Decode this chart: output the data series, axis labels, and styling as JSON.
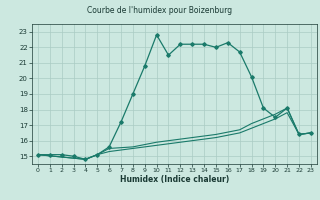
{
  "title": "Courbe de l'humidex pour Boizenburg",
  "xlabel": "Humidex (Indice chaleur)",
  "bg_color": "#cce8e0",
  "grid_color": "#aaccC4",
  "line_color": "#1a7a6a",
  "xlim": [
    -0.5,
    23.5
  ],
  "ylim": [
    14.5,
    23.5
  ],
  "yticks": [
    15,
    16,
    17,
    18,
    19,
    20,
    21,
    22,
    23
  ],
  "xticks": [
    0,
    1,
    2,
    3,
    4,
    5,
    6,
    7,
    8,
    9,
    10,
    11,
    12,
    13,
    14,
    15,
    16,
    17,
    18,
    19,
    20,
    21,
    22,
    23
  ],
  "line1_x": [
    0,
    1,
    2,
    3,
    4,
    5,
    6,
    7,
    8,
    9,
    10,
    11,
    12,
    13,
    14,
    15,
    16,
    17,
    18,
    19,
    20,
    21,
    22,
    23
  ],
  "line1_y": [
    15.1,
    15.1,
    15.1,
    15.0,
    14.8,
    15.1,
    15.6,
    17.2,
    19.0,
    20.8,
    22.8,
    21.5,
    22.2,
    22.2,
    22.2,
    22.0,
    22.3,
    21.7,
    20.1,
    18.1,
    17.5,
    18.1,
    16.4,
    16.5
  ],
  "line2_x": [
    0,
    4,
    5,
    6,
    8,
    10,
    13,
    15,
    17,
    18,
    20,
    21,
    22,
    23
  ],
  "line2_y": [
    15.1,
    14.8,
    15.1,
    15.3,
    15.5,
    15.7,
    16.0,
    16.2,
    16.5,
    16.8,
    17.4,
    17.8,
    16.4,
    16.5
  ],
  "line3_x": [
    0,
    4,
    5,
    6,
    8,
    10,
    13,
    15,
    17,
    18,
    20,
    21,
    22,
    23
  ],
  "line3_y": [
    15.1,
    14.8,
    15.1,
    15.5,
    15.6,
    15.9,
    16.2,
    16.4,
    16.7,
    17.1,
    17.7,
    18.1,
    16.4,
    16.5
  ]
}
